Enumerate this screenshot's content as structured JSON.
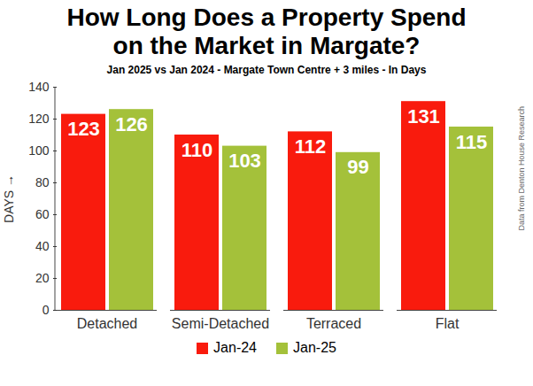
{
  "chart_data": {
    "type": "bar",
    "title": "How Long Does a Property Spend on the Market in Margate?",
    "subtitle": "Jan 2025 vs Jan 2024 - Margate Town Centre + 3 miles - In Days",
    "y_label": "DAYS",
    "annotation": "Data from Denton House Research",
    "categories": [
      "Detached",
      "Semi-Detached",
      "Terraced",
      "Flat"
    ],
    "series": [
      {
        "name": "Jan-24",
        "color": "#f91b0d",
        "values": [
          123,
          110,
          112,
          131
        ]
      },
      {
        "name": "Jan-25",
        "color": "#a4c13a",
        "values": [
          126,
          103,
          99,
          115
        ]
      }
    ],
    "ylim": [
      0,
      140
    ],
    "yticks": [
      0,
      20,
      40,
      60,
      80,
      100,
      120,
      140
    ],
    "grid": false,
    "data_labels": true,
    "legend": "bottom"
  }
}
